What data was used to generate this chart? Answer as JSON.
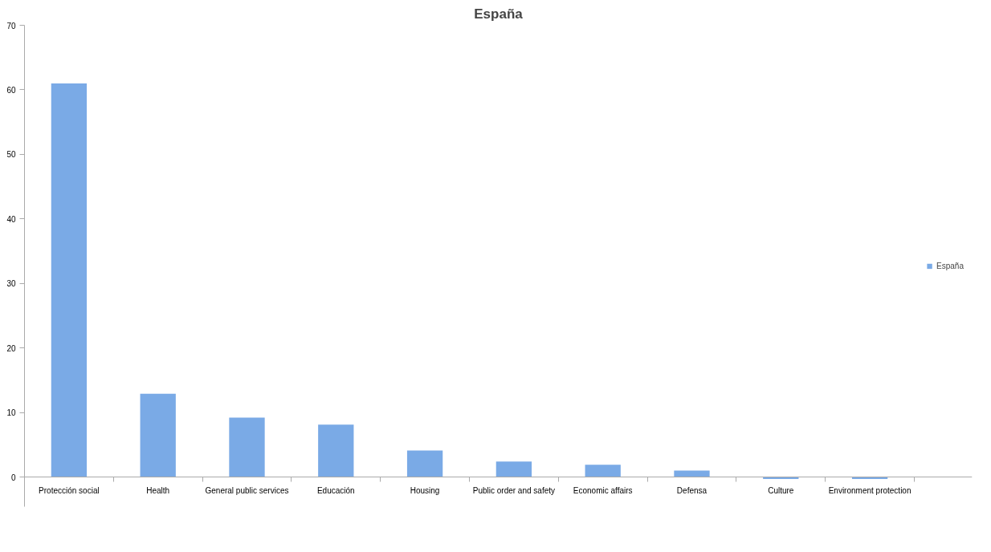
{
  "chart_data": {
    "type": "bar",
    "title": "España",
    "categories": [
      "Protección social",
      "Health",
      "General public services",
      "Educación",
      "Housing",
      "Public order and safety",
      "Economic affairs",
      "Defensa",
      "Culture",
      "Environment protection"
    ],
    "series": [
      {
        "name": "España",
        "color": "#7aaae6",
        "values": [
          61.0,
          12.9,
          9.2,
          8.1,
          4.1,
          2.4,
          1.9,
          1.0,
          -0.3,
          -0.3
        ]
      }
    ],
    "ylim": [
      -4.6,
      70
    ],
    "yticks": [
      0,
      10,
      20,
      30,
      40,
      50,
      60,
      70
    ],
    "grid": false,
    "legend": "right"
  }
}
